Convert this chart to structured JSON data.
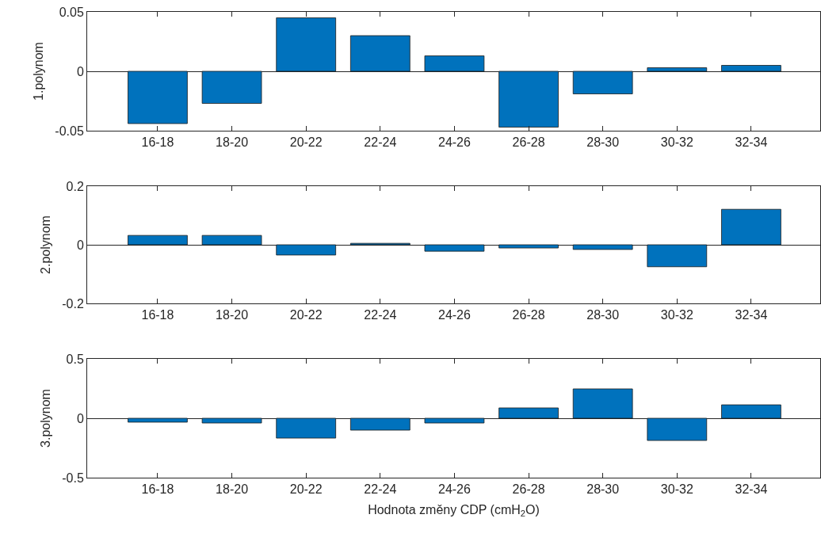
{
  "chart_data": [
    {
      "type": "bar",
      "ylabel": "1.polynom",
      "categories": [
        "16-18",
        "18-20",
        "20-22",
        "22-24",
        "24-26",
        "26-28",
        "28-30",
        "30-32",
        "32-34"
      ],
      "values": [
        -0.044,
        -0.027,
        0.045,
        0.03,
        0.013,
        -0.047,
        -0.019,
        0.003,
        0.005
      ],
      "color": "#0072bd",
      "ylim": [
        -0.05,
        0.05
      ],
      "yticks": [
        -0.05,
        0,
        0.05
      ]
    },
    {
      "type": "bar",
      "ylabel": "2.polynom",
      "categories": [
        "16-18",
        "18-20",
        "20-22",
        "22-24",
        "24-26",
        "26-28",
        "28-30",
        "30-32",
        "32-34"
      ],
      "values": [
        0.032,
        0.032,
        -0.035,
        0.005,
        -0.022,
        -0.011,
        -0.016,
        -0.075,
        0.121
      ],
      "color": "#0072bd",
      "ylim": [
        -0.2,
        0.2
      ],
      "yticks": [
        -0.2,
        0,
        0.2
      ]
    },
    {
      "type": "bar",
      "ylabel": "3.polynom",
      "xlabel": "Hodnota změny CDP (cmH$_{2}$O)",
      "categories": [
        "16-18",
        "18-20",
        "20-22",
        "22-24",
        "24-26",
        "26-28",
        "28-30",
        "30-32",
        "32-34"
      ],
      "values": [
        -0.033,
        -0.04,
        -0.167,
        -0.1,
        -0.04,
        0.087,
        0.247,
        -0.187,
        0.113
      ],
      "color": "#0072bd",
      "ylim": [
        -0.5,
        0.5
      ],
      "yticks": [
        -0.5,
        0,
        0.5
      ]
    }
  ]
}
